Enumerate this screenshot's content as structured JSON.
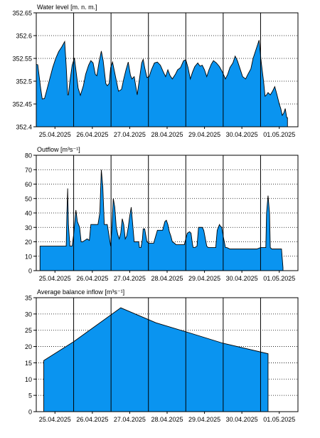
{
  "chart_data": [
    {
      "type": "area",
      "title": "Water level [m. n. m.]",
      "ylabel": "",
      "xlabel": "",
      "ylim": [
        352.4,
        352.65
      ],
      "yticks": [
        352.4,
        352.45,
        352.5,
        352.55,
        352.6,
        352.65
      ],
      "yticklabels": [
        "352.4",
        "352.45",
        "352.5",
        "352.55",
        "352.6",
        "352.65"
      ],
      "xlim": [
        0,
        7
      ],
      "xticks": [
        0.5,
        1.5,
        2.5,
        3.5,
        4.5,
        5.5,
        6.5
      ],
      "xticklabels": [
        "25.04.2025",
        "26.04.2025",
        "27.04.2025",
        "28.04.2025",
        "29.04.2025",
        "30.04.2025",
        "01.05.2025"
      ],
      "grid": true,
      "fill_color": "#0a94f0",
      "series": [
        {
          "x": [
            0.0,
            0.04,
            0.12,
            0.16,
            0.22,
            0.28,
            0.36,
            0.44,
            0.52,
            0.6,
            0.68,
            0.76,
            0.8,
            0.84,
            0.86,
            0.9,
            0.96,
            1.02,
            1.06,
            1.12,
            1.18,
            1.26,
            1.32,
            1.4,
            1.46,
            1.52,
            1.58,
            1.62,
            1.68,
            1.74,
            1.79,
            1.86,
            1.9,
            1.95,
            1.99,
            2.04,
            2.12,
            2.2,
            2.28,
            2.34,
            2.4,
            2.46,
            2.52,
            2.56,
            2.62,
            2.7,
            2.76,
            2.82,
            2.86,
            2.9,
            2.96,
            3.02,
            3.08,
            3.16,
            3.24,
            3.32,
            3.4,
            3.46,
            3.52,
            3.58,
            3.64,
            3.72,
            3.78,
            3.86,
            3.94,
            4.0,
            4.06,
            4.12,
            4.18,
            4.24,
            4.32,
            4.38,
            4.44,
            4.5,
            4.56,
            4.62,
            4.68,
            4.74,
            4.82,
            4.9,
            4.98,
            5.06,
            5.12,
            5.18,
            5.26,
            5.32,
            5.38,
            5.44,
            5.48,
            5.52,
            5.6,
            5.66,
            5.74,
            5.8,
            5.86,
            5.9,
            5.96,
            6.02,
            6.08,
            6.12,
            6.16,
            6.2,
            6.26,
            6.32,
            6.38,
            6.44,
            6.5,
            6.54,
            6.58,
            6.62,
            6.66,
            6.7,
            6.72
          ],
          "y": [
            352.537,
            352.536,
            352.483,
            352.461,
            352.462,
            352.48,
            352.505,
            352.53,
            352.55,
            352.565,
            352.575,
            352.587,
            352.535,
            352.47,
            352.47,
            352.5,
            352.535,
            352.551,
            352.525,
            352.485,
            352.469,
            352.49,
            352.515,
            352.535,
            352.545,
            352.54,
            352.515,
            352.512,
            352.542,
            352.566,
            352.545,
            352.495,
            352.49,
            352.495,
            352.53,
            352.542,
            352.51,
            352.478,
            352.482,
            352.505,
            352.525,
            352.542,
            352.513,
            352.505,
            352.51,
            352.47,
            352.505,
            352.54,
            352.548,
            352.53,
            352.508,
            352.51,
            352.525,
            352.54,
            352.542,
            352.535,
            352.52,
            352.51,
            352.525,
            352.512,
            352.505,
            352.515,
            352.525,
            352.53,
            352.545,
            352.547,
            352.53,
            352.505,
            352.52,
            352.532,
            352.54,
            352.533,
            352.535,
            352.525,
            352.51,
            352.525,
            352.537,
            352.545,
            352.54,
            352.532,
            352.52,
            352.505,
            352.515,
            352.53,
            352.54,
            352.555,
            352.545,
            352.53,
            352.52,
            352.51,
            352.505,
            352.515,
            352.527,
            352.55,
            352.565,
            352.575,
            352.59,
            352.54,
            352.5,
            352.467,
            352.47,
            352.475,
            352.47,
            352.478,
            352.488,
            352.47,
            352.45,
            352.44,
            352.425,
            352.43,
            352.44,
            352.42,
            352.42
          ]
        }
      ]
    },
    {
      "type": "area",
      "title": "Outflow [m³s⁻¹]",
      "ylabel": "",
      "xlabel": "",
      "ylim": [
        0,
        80
      ],
      "yticks": [
        0,
        10,
        20,
        30,
        40,
        50,
        60,
        70,
        80
      ],
      "yticklabels": [
        "0",
        "10",
        "20",
        "30",
        "40",
        "50",
        "60",
        "70",
        "80"
      ],
      "xlim": [
        0,
        7
      ],
      "xticks": [
        0.5,
        1.5,
        2.5,
        3.5,
        4.5,
        5.5,
        6.5
      ],
      "xticklabels": [
        "25.04.2025",
        "26.04.2025",
        "27.04.2025",
        "28.04.2025",
        "29.04.2025",
        "30.04.2025",
        "01.05.2025"
      ],
      "grid": true,
      "fill_color": "#0a94f0",
      "series": [
        {
          "x": [
            0.1,
            0.1,
            0.8,
            0.82,
            0.84,
            0.86,
            0.9,
            0.96,
            1.0,
            1.06,
            1.1,
            1.16,
            1.2,
            1.24,
            1.3,
            1.36,
            1.42,
            1.46,
            1.5,
            1.58,
            1.65,
            1.7,
            1.74,
            1.78,
            1.82,
            1.86,
            1.9,
            1.96,
            1.99,
            2.02,
            2.06,
            2.1,
            2.14,
            2.18,
            2.22,
            2.26,
            2.3,
            2.34,
            2.38,
            2.42,
            2.46,
            2.5,
            2.54,
            2.58,
            2.62,
            2.66,
            2.74,
            2.76,
            2.8,
            2.84,
            2.86,
            2.9,
            2.96,
            3.02,
            3.08,
            3.14,
            3.24,
            3.3,
            3.38,
            3.44,
            3.48,
            3.52,
            3.56,
            3.6,
            3.64,
            3.7,
            3.74,
            3.86,
            3.9,
            3.96,
            4.04,
            4.1,
            4.14,
            4.18,
            4.2,
            4.24,
            4.3,
            4.34,
            4.4,
            4.44,
            4.48,
            4.56,
            4.6,
            4.66,
            4.72,
            4.76,
            4.8,
            4.84,
            4.9,
            4.92,
            4.96,
            5.0,
            5.06,
            5.1,
            5.18,
            5.3,
            5.5,
            5.6,
            5.7,
            5.8,
            5.9,
            6.0,
            6.08,
            6.14,
            6.16,
            6.2,
            6.24,
            6.26,
            6.3,
            6.36,
            6.56,
            6.6,
            6.6
          ],
          "y": [
            0,
            17,
            17,
            40,
            57,
            32,
            17,
            17,
            25,
            42,
            34,
            30,
            20,
            20,
            21,
            22,
            21,
            32,
            32,
            32,
            32,
            40,
            70,
            58,
            32,
            32,
            32,
            22,
            17,
            28,
            50,
            44,
            30,
            25,
            22,
            26,
            36,
            32,
            22,
            24,
            30,
            38,
            44,
            32,
            20,
            20,
            20,
            16,
            16,
            22,
            29,
            29,
            20,
            19,
            19,
            19,
            28,
            28,
            28,
            34,
            35,
            32,
            27,
            24,
            20,
            19,
            18,
            18,
            18,
            18,
            26,
            27,
            26,
            18,
            16,
            16,
            17,
            30,
            30,
            30,
            28,
            17,
            16,
            16,
            16,
            16,
            16,
            28,
            32,
            31,
            30,
            24,
            16,
            16,
            15,
            15,
            15,
            15,
            15,
            15,
            15,
            16,
            16,
            16,
            40,
            52,
            40,
            16,
            15,
            15,
            15,
            2,
            0
          ]
        }
      ]
    },
    {
      "type": "area",
      "title": "Average balance inflow [m³s⁻¹]",
      "ylabel": "",
      "xlabel": "",
      "ylim": [
        0,
        35
      ],
      "yticks": [
        0,
        5,
        10,
        15,
        20,
        25,
        30,
        35
      ],
      "yticklabels": [
        "0",
        "5",
        "10",
        "15",
        "20",
        "25",
        "30",
        "35"
      ],
      "xlim": [
        0,
        7
      ],
      "xticks": [
        0.5,
        1.5,
        2.5,
        3.5,
        4.5,
        5.5,
        6.5
      ],
      "xticklabels": [
        "25.04.2025",
        "26.04.2025",
        "27.04.2025",
        "28.04.2025",
        "29.04.2025",
        "30.04.2025",
        "01.05.2025"
      ],
      "grid": true,
      "fill_color": "#0a94f0",
      "series": [
        {
          "x": [
            0.2,
            0.2,
            1.0,
            2.26,
            3.2,
            4.1,
            5.0,
            6.2,
            6.2
          ],
          "y": [
            0,
            15.7,
            21.5,
            31.9,
            27.3,
            24.2,
            21.0,
            17.8,
            0
          ]
        }
      ]
    }
  ]
}
